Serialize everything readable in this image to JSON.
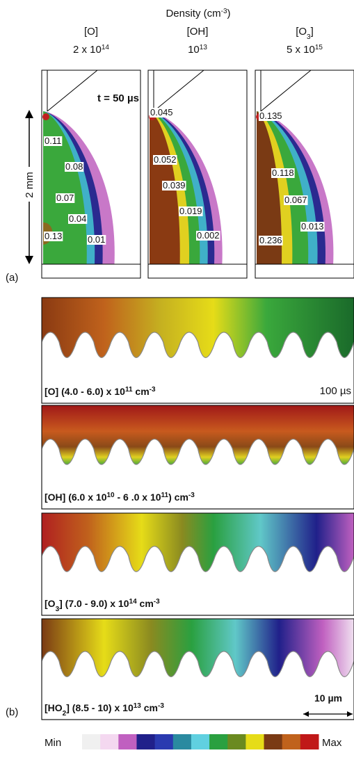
{
  "header": {
    "title": "Density (cm",
    "title_sup": "-3",
    "title_end": ")"
  },
  "panel_a": {
    "label": "(a)",
    "time": "t = 50 µs",
    "scale_bar": "2 mm",
    "columns": [
      {
        "species": "[O]",
        "scale": "2 x 10",
        "scale_exp": "14",
        "labels": [
          "0.11",
          "0.08",
          "0.07",
          "0.04",
          "0.13",
          "0.01"
        ]
      },
      {
        "species": "[OH]",
        "scale": "10",
        "scale_exp": "13",
        "labels": [
          "0.045",
          "0.052",
          "0.039",
          "0.019",
          "0.002"
        ]
      },
      {
        "species": "[O",
        "species_sub": "3",
        "species_end": "]",
        "scale": "5 x 10",
        "scale_exp": "15",
        "labels": [
          "0.135",
          "0.118",
          "0.067",
          "0.013",
          "0.236"
        ]
      }
    ]
  },
  "panel_b": {
    "label": "(b)",
    "time": "100 µs",
    "scale_bar": "10 µm",
    "rows": [
      {
        "caption": [
          {
            "text": "[O] (4.0 - 6.0) x 10"
          },
          {
            "text": "11",
            "style": "sup"
          },
          {
            "text": " cm"
          },
          {
            "text": "-3",
            "style": "sup"
          }
        ]
      },
      {
        "caption": [
          {
            "text": "[OH] (6.0 x 10"
          },
          {
            "text": "10",
            "style": "sup"
          },
          {
            "text": " - 6 .0 x 10"
          },
          {
            "text": "11",
            "style": "sup"
          },
          {
            "text": ") cm"
          },
          {
            "text": "-3",
            "style": "sup"
          }
        ]
      },
      {
        "caption": [
          {
            "text": "[O"
          },
          {
            "text": "3",
            "style": "sub"
          },
          {
            "text": "] (7.0 - 9.0) x 10"
          },
          {
            "text": "14",
            "style": "sup"
          },
          {
            "text": " cm"
          },
          {
            "text": "-3",
            "style": "sup"
          }
        ]
      },
      {
        "caption": [
          {
            "text": "[HO"
          },
          {
            "text": "2",
            "style": "sub"
          },
          {
            "text": "] (8.5 - 10) x 10"
          },
          {
            "text": "13",
            "style": "sup"
          },
          {
            "text": " cm"
          },
          {
            "text": "-3",
            "style": "sup"
          }
        ]
      }
    ]
  },
  "colorbar": {
    "min": "Min",
    "max": "Max"
  }
}
